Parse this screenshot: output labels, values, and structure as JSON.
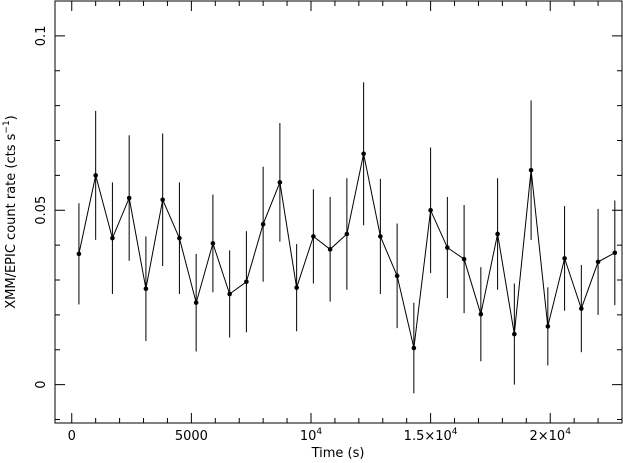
{
  "chart_data": {
    "type": "scatter",
    "title": "",
    "xlabel": "Time (s)",
    "ylabel_main": "XMM/EPIC count rate (cts s",
    "ylabel_sup": "−1",
    "ylabel_close": ")",
    "xlim": [
      -700,
      23000
    ],
    "ylim": [
      -0.011,
      0.11
    ],
    "x_ticks": [
      {
        "value": 0,
        "label": "0"
      },
      {
        "value": 5000,
        "label": "5000"
      },
      {
        "value": 10000,
        "label": "10",
        "sup": "4"
      },
      {
        "value": 15000,
        "label": "1.5×10",
        "sup": "4"
      },
      {
        "value": 20000,
        "label": "2×10",
        "sup": "4"
      }
    ],
    "y_ticks": [
      {
        "value": 0,
        "label": "0"
      },
      {
        "value": 0.05,
        "label": "0.05"
      },
      {
        "value": 0.1,
        "label": "0.1"
      }
    ],
    "grid": false,
    "series": [
      {
        "connected": true,
        "error_bars": true,
        "points": [
          {
            "x": 300,
            "y": 0.0375,
            "err": 0.0145
          },
          {
            "x": 1000,
            "y": 0.06,
            "err": 0.0185
          },
          {
            "x": 1700,
            "y": 0.042,
            "err": 0.016
          },
          {
            "x": 2400,
            "y": 0.0535,
            "err": 0.018
          },
          {
            "x": 3100,
            "y": 0.0275,
            "err": 0.015
          },
          {
            "x": 3800,
            "y": 0.053,
            "err": 0.019
          },
          {
            "x": 4500,
            "y": 0.042,
            "err": 0.016
          },
          {
            "x": 5200,
            "y": 0.0235,
            "err": 0.014
          },
          {
            "x": 5900,
            "y": 0.0405,
            "err": 0.014
          },
          {
            "x": 6600,
            "y": 0.026,
            "err": 0.0125
          },
          {
            "x": 7300,
            "y": 0.0295,
            "err": 0.0145
          },
          {
            "x": 8000,
            "y": 0.046,
            "err": 0.0165
          },
          {
            "x": 8700,
            "y": 0.058,
            "err": 0.017
          },
          {
            "x": 9400,
            "y": 0.0278,
            "err": 0.0125
          },
          {
            "x": 10100,
            "y": 0.0425,
            "err": 0.0135
          },
          {
            "x": 10800,
            "y": 0.0388,
            "err": 0.015
          },
          {
            "x": 11500,
            "y": 0.0432,
            "err": 0.016
          },
          {
            "x": 12200,
            "y": 0.0662,
            "err": 0.0205
          },
          {
            "x": 12900,
            "y": 0.0425,
            "err": 0.0165
          },
          {
            "x": 13600,
            "y": 0.0312,
            "err": 0.015
          },
          {
            "x": 14300,
            "y": 0.0105,
            "err": 0.013
          },
          {
            "x": 15000,
            "y": 0.05,
            "err": 0.018
          },
          {
            "x": 15700,
            "y": 0.0393,
            "err": 0.0145
          },
          {
            "x": 16400,
            "y": 0.036,
            "err": 0.0155
          },
          {
            "x": 17100,
            "y": 0.0202,
            "err": 0.0135
          },
          {
            "x": 17800,
            "y": 0.0432,
            "err": 0.016
          },
          {
            "x": 18500,
            "y": 0.0145,
            "err": 0.0145
          },
          {
            "x": 19200,
            "y": 0.0615,
            "err": 0.02
          },
          {
            "x": 19900,
            "y": 0.0167,
            "err": 0.0112
          },
          {
            "x": 20600,
            "y": 0.0362,
            "err": 0.015
          },
          {
            "x": 21300,
            "y": 0.0218,
            "err": 0.0125
          },
          {
            "x": 22000,
            "y": 0.0352,
            "err": 0.0152
          },
          {
            "x": 22700,
            "y": 0.0378,
            "err": 0.015
          }
        ]
      }
    ]
  }
}
